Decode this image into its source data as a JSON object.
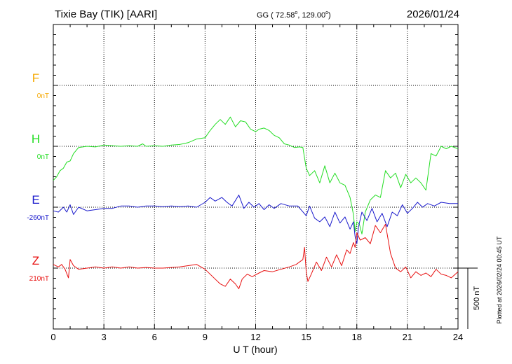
{
  "header": {
    "station": "Tixie Bay (TIK)  [AARI]",
    "coords_prefix": "GG ( 72.58",
    "coords_mid": ", 129.00",
    "coords_suffix": ")",
    "degree_mark": "o",
    "date": "2026/01/24"
  },
  "footer": {
    "xlabel": "U T (hour)",
    "plotted": "Plotted at 2026/02/24 00:45 UT",
    "scale_label": "500 nT"
  },
  "chart_data": {
    "type": "line",
    "title": "Tixie Bay (TIK)  [AARI]",
    "xlabel": "U T (hour)",
    "ylabel": "",
    "xlim": [
      0,
      24
    ],
    "xticks": [
      0,
      3,
      6,
      9,
      12,
      15,
      18,
      21,
      24
    ],
    "xtick_labels": [
      "0",
      "3",
      "6",
      "9",
      "12",
      "15",
      "18",
      "21",
      "24"
    ],
    "y_unit": "nT",
    "scale_bar_nT": 500,
    "grid": true,
    "series": [
      {
        "name": "F",
        "baseline_label": "0nT",
        "baseline_nT": 0,
        "color": "#f5a800",
        "t": [],
        "v": []
      },
      {
        "name": "H",
        "baseline_label": "0nT",
        "baseline_nT": 0,
        "color": "#22dd22",
        "t": [
          0,
          0.2,
          0.4,
          0.6,
          0.8,
          1.0,
          1.2,
          1.5,
          2,
          2.5,
          3,
          3.5,
          4,
          4.5,
          5,
          5.3,
          5.5,
          6,
          6.5,
          7,
          7.5,
          8,
          8.5,
          9,
          9.3,
          9.6,
          9.9,
          10.2,
          10.5,
          10.8,
          11.1,
          11.4,
          11.7,
          12,
          12.2,
          12.5,
          12.8,
          13.1,
          13.4,
          13.7,
          14,
          14.3,
          14.6,
          14.8,
          15.0,
          15.2,
          15.5,
          15.8,
          16.1,
          16.4,
          16.7,
          17.0,
          17.3,
          17.6,
          17.8,
          17.9,
          18.0,
          18.15,
          18.3,
          18.5,
          18.8,
          19.1,
          19.4,
          19.7,
          20.0,
          20.3,
          20.6,
          20.9,
          21.2,
          21.5,
          21.8,
          22.1,
          22.4,
          22.7,
          23.0,
          23.3,
          23.6,
          24
        ],
        "v": [
          -280,
          -250,
          -200,
          -180,
          -130,
          -120,
          -60,
          -10,
          0,
          -5,
          10,
          5,
          0,
          5,
          0,
          20,
          0,
          5,
          0,
          10,
          15,
          30,
          60,
          70,
          130,
          180,
          220,
          180,
          240,
          160,
          210,
          200,
          140,
          120,
          140,
          150,
          130,
          90,
          70,
          20,
          10,
          -10,
          -5,
          -10,
          -180,
          -240,
          -200,
          -300,
          -160,
          -300,
          -220,
          -300,
          -320,
          -420,
          -560,
          -700,
          -620,
          -640,
          -720,
          -540,
          -440,
          -400,
          -420,
          -200,
          -260,
          -220,
          -340,
          -230,
          -300,
          -260,
          -300,
          -360,
          -60,
          -80,
          0,
          -20,
          0,
          -20
        ]
      },
      {
        "name": "E",
        "baseline_label": "-260nT",
        "baseline_nT": -260,
        "color": "#1a1acc",
        "t": [
          0,
          0.3,
          0.6,
          0.8,
          1.0,
          1.2,
          1.5,
          2,
          2.5,
          3,
          3.5,
          4,
          4.5,
          5,
          5.5,
          6,
          6.5,
          7,
          7.5,
          8,
          8.5,
          9,
          9.3,
          9.6,
          10,
          10.3,
          10.6,
          11.0,
          11.3,
          11.6,
          11.9,
          12.2,
          12.5,
          12.8,
          13.1,
          13.5,
          14,
          14.5,
          15,
          15.2,
          15.5,
          15.8,
          16.1,
          16.4,
          16.7,
          17.0,
          17.3,
          17.6,
          17.8,
          17.9,
          18.0,
          18.1,
          18.3,
          18.6,
          18.9,
          19.2,
          19.5,
          19.8,
          20.1,
          20.4,
          20.7,
          21.0,
          21.3,
          21.6,
          21.9,
          22.2,
          22.6,
          23,
          23.5,
          24
        ],
        "v": [
          -290,
          -300,
          -260,
          -300,
          -240,
          -320,
          -260,
          -290,
          -280,
          -270,
          -270,
          -250,
          -250,
          -260,
          -250,
          -250,
          -255,
          -250,
          -255,
          -250,
          -260,
          -220,
          -180,
          -210,
          -180,
          -220,
          -250,
          -160,
          -270,
          -220,
          -260,
          -230,
          -280,
          -240,
          -270,
          -230,
          -250,
          -250,
          -330,
          -250,
          -350,
          -380,
          -340,
          -420,
          -300,
          -390,
          -340,
          -440,
          -380,
          -500,
          -560,
          -420,
          -300,
          -370,
          -270,
          -380,
          -310,
          -420,
          -300,
          -330,
          -240,
          -310,
          -270,
          -220,
          -260,
          -230,
          -250,
          -220,
          -230,
          -230
        ]
      },
      {
        "name": "Z",
        "baseline_label": "210nT",
        "baseline_nT": 210,
        "color": "#e81010",
        "t": [
          0,
          0.3,
          0.5,
          0.7,
          0.9,
          1.0,
          1.2,
          1.5,
          2,
          2.5,
          3,
          3.5,
          4,
          4.5,
          5,
          5.5,
          6,
          6.5,
          7,
          7.5,
          8,
          8.5,
          9,
          9.3,
          9.6,
          9.9,
          10.2,
          10.5,
          10.8,
          11.0,
          11.2,
          11.5,
          11.8,
          12.2,
          12.5,
          13,
          13.5,
          14,
          14.4,
          14.8,
          14.9,
          15.0,
          15.1,
          15.3,
          15.6,
          15.9,
          16.2,
          16.5,
          16.8,
          17.1,
          17.4,
          17.6,
          17.8,
          17.9,
          18.0,
          18.2,
          18.5,
          18.8,
          19.1,
          19.4,
          19.7,
          20.0,
          20.3,
          20.6,
          20.9,
          21.2,
          21.5,
          21.8,
          22.1,
          22.4,
          22.7,
          23,
          23.3,
          23.6,
          24
        ],
        "v": [
          240,
          220,
          240,
          200,
          130,
          280,
          230,
          200,
          210,
          220,
          210,
          220,
          210,
          220,
          210,
          215,
          210,
          210,
          215,
          220,
          230,
          240,
          200,
          160,
          120,
          80,
          60,
          120,
          80,
          40,
          120,
          160,
          140,
          170,
          190,
          180,
          200,
          220,
          240,
          280,
          380,
          180,
          100,
          160,
          260,
          190,
          300,
          220,
          320,
          230,
          360,
          330,
          420,
          380,
          500,
          440,
          460,
          410,
          560,
          500,
          570,
          330,
          210,
          180,
          220,
          130,
          180,
          150,
          170,
          140,
          200,
          160,
          150,
          130,
          180
        ]
      }
    ]
  }
}
